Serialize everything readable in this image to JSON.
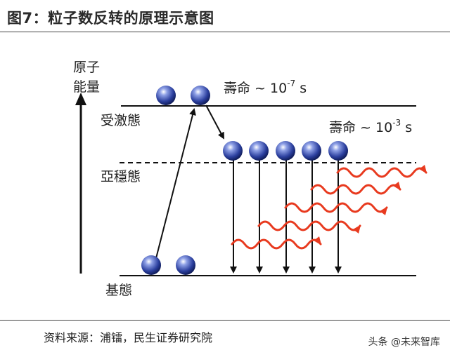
{
  "title": "图7：粒子数反转的原理示意图",
  "y_axis_label_line1": "原子",
  "y_axis_label_line2": "能量",
  "levels": {
    "excited": "受激態",
    "metastable": "亞穩態",
    "ground": "基態"
  },
  "lifetimes": {
    "excited": {
      "prefix": "壽命 ~ 10",
      "exp": "-7",
      "unit": " s"
    },
    "metastable": {
      "prefix": "壽命 ~ 10",
      "exp": "-3",
      "unit": " s"
    }
  },
  "source": "资料来源：浦镭，民生证券研究院",
  "watermark": "头条 @未来智库",
  "colors": {
    "atom": "#2b3f9e",
    "wave": "#e83a1f",
    "line": "#111111"
  }
}
